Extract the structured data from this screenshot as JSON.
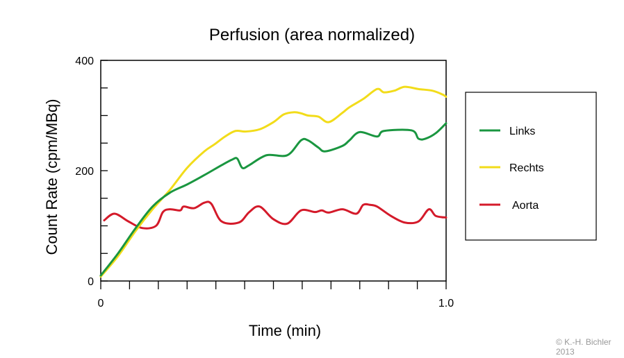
{
  "chart_data": {
    "type": "line",
    "title": "Perfusion (area normalized)",
    "xlabel": "Time (min)",
    "ylabel": "Count Rate (cpm/MBq)",
    "xlim": [
      0,
      1.0
    ],
    "ylim": [
      0,
      400
    ],
    "x_tick_labels": [
      {
        "value": 0,
        "label": "0"
      },
      {
        "value": 1.0,
        "label": "1.0"
      }
    ],
    "y_tick_labels": [
      {
        "value": 0,
        "label": "0"
      },
      {
        "value": 200,
        "label": "200"
      },
      {
        "value": 400,
        "label": "400"
      }
    ],
    "grid": false,
    "legend_position": "right",
    "series": [
      {
        "name": "Links",
        "color": "#1a9640",
        "points": [
          [
            0.0,
            10
          ],
          [
            0.05,
            50
          ],
          [
            0.1,
            95
          ],
          [
            0.15,
            135
          ],
          [
            0.2,
            160
          ],
          [
            0.25,
            175
          ],
          [
            0.3,
            192
          ],
          [
            0.35,
            210
          ],
          [
            0.38,
            220
          ],
          [
            0.395,
            222
          ],
          [
            0.41,
            205
          ],
          [
            0.43,
            210
          ],
          [
            0.48,
            228
          ],
          [
            0.54,
            228
          ],
          [
            0.58,
            255
          ],
          [
            0.6,
            255
          ],
          [
            0.63,
            242
          ],
          [
            0.65,
            235
          ],
          [
            0.7,
            245
          ],
          [
            0.72,
            255
          ],
          [
            0.75,
            270
          ],
          [
            0.8,
            262
          ],
          [
            0.82,
            272
          ],
          [
            0.9,
            273
          ],
          [
            0.92,
            258
          ],
          [
            0.94,
            258
          ],
          [
            0.97,
            268
          ],
          [
            1.0,
            286
          ]
        ]
      },
      {
        "name": "Rechts",
        "color": "#f2dc1a",
        "points": [
          [
            0.0,
            8
          ],
          [
            0.05,
            45
          ],
          [
            0.1,
            90
          ],
          [
            0.15,
            130
          ],
          [
            0.2,
            165
          ],
          [
            0.25,
            205
          ],
          [
            0.3,
            235
          ],
          [
            0.33,
            248
          ],
          [
            0.36,
            262
          ],
          [
            0.39,
            272
          ],
          [
            0.42,
            271
          ],
          [
            0.46,
            275
          ],
          [
            0.5,
            288
          ],
          [
            0.53,
            302
          ],
          [
            0.56,
            306
          ],
          [
            0.58,
            304
          ],
          [
            0.6,
            300
          ],
          [
            0.63,
            298
          ],
          [
            0.66,
            288
          ],
          [
            0.7,
            305
          ],
          [
            0.72,
            315
          ],
          [
            0.76,
            330
          ],
          [
            0.8,
            348
          ],
          [
            0.82,
            342
          ],
          [
            0.85,
            345
          ],
          [
            0.88,
            352
          ],
          [
            0.92,
            348
          ],
          [
            0.96,
            345
          ],
          [
            0.99,
            338
          ],
          [
            1.0,
            334
          ]
        ]
      },
      {
        "name": "Aorta",
        "color": "#d41a2a",
        "points": [
          [
            0.01,
            110
          ],
          [
            0.04,
            122
          ],
          [
            0.08,
            108
          ],
          [
            0.12,
            96
          ],
          [
            0.16,
            100
          ],
          [
            0.18,
            125
          ],
          [
            0.2,
            130
          ],
          [
            0.23,
            128
          ],
          [
            0.24,
            135
          ],
          [
            0.27,
            132
          ],
          [
            0.3,
            142
          ],
          [
            0.32,
            140
          ],
          [
            0.35,
            108
          ],
          [
            0.4,
            106
          ],
          [
            0.43,
            125
          ],
          [
            0.46,
            135
          ],
          [
            0.5,
            112
          ],
          [
            0.54,
            104
          ],
          [
            0.58,
            128
          ],
          [
            0.62,
            125
          ],
          [
            0.64,
            128
          ],
          [
            0.66,
            124
          ],
          [
            0.7,
            130
          ],
          [
            0.74,
            122
          ],
          [
            0.76,
            138
          ],
          [
            0.78,
            138
          ],
          [
            0.8,
            135
          ],
          [
            0.84,
            118
          ],
          [
            0.88,
            106
          ],
          [
            0.92,
            108
          ],
          [
            0.95,
            130
          ],
          [
            0.97,
            118
          ],
          [
            1.0,
            115
          ]
        ]
      }
    ]
  },
  "copyright": {
    "line1": "© K.-H. Bichler",
    "line2": "2013"
  }
}
